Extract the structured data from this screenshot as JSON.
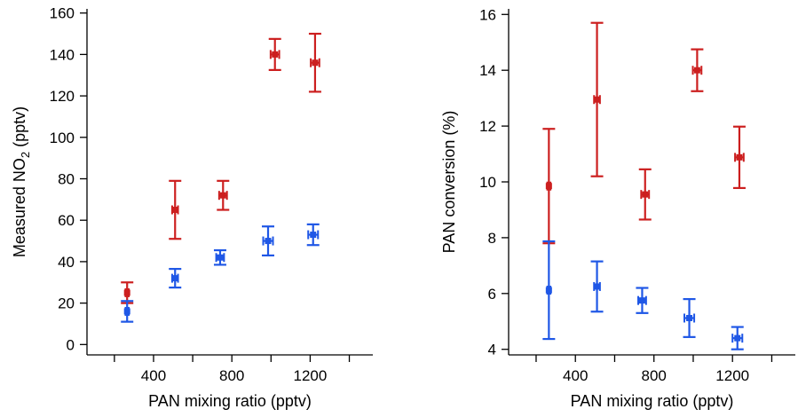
{
  "colors": {
    "red": "#cc1f1f",
    "blue": "#1f57e6",
    "axis": "#000000"
  },
  "chart_data": [
    {
      "type": "scatter",
      "error_bars": true,
      "title": "",
      "xlabel": "PAN mixing ratio (pptv)",
      "ylabel_main": "Measured NO",
      "ylabel_sub": "2",
      "ylabel_tail": " (pptv)",
      "xlim": [
        60,
        1520
      ],
      "ylim": [
        -5,
        162
      ],
      "x_ticks": [
        400,
        800,
        1200
      ],
      "x_minor_ticks": [
        200,
        600,
        1000,
        1400
      ],
      "y_ticks": [
        0,
        20,
        40,
        60,
        80,
        100,
        120,
        140,
        160
      ],
      "grid": false,
      "legend": "none",
      "series": [
        {
          "color": "red",
          "x": [
            265,
            510,
            755,
            1020,
            1225
          ],
          "y": [
            25,
            65,
            72,
            140,
            136
          ],
          "y_err": [
            5,
            14,
            7,
            7.5,
            14
          ],
          "x_err": [
            8,
            15,
            20,
            22,
            22
          ]
        },
        {
          "color": "blue",
          "x": [
            265,
            510,
            740,
            985,
            1215
          ],
          "y": [
            16,
            32,
            42,
            50,
            53
          ],
          "y_err": [
            5,
            4.5,
            3.5,
            7,
            5
          ],
          "x_err": [
            8,
            15,
            20,
            25,
            25
          ]
        }
      ]
    },
    {
      "type": "scatter",
      "error_bars": true,
      "title": "",
      "xlabel": "PAN mixing ratio (pptv)",
      "ylabel_main": "PAN conversion (%)",
      "ylabel_sub": "",
      "ylabel_tail": "",
      "xlim": [
        60,
        1520
      ],
      "ylim": [
        3.8,
        16.2
      ],
      "x_ticks": [
        400,
        800,
        1200
      ],
      "x_minor_ticks": [
        200,
        600,
        1000,
        1400
      ],
      "y_ticks": [
        4,
        6,
        8,
        10,
        12,
        14,
        16
      ],
      "grid": false,
      "legend": "none",
      "series": [
        {
          "color": "red",
          "x": [
            265,
            510,
            755,
            1020,
            1235
          ],
          "y": [
            9.85,
            12.95,
            9.55,
            14.0,
            10.88
          ],
          "y_err": [
            2.05,
            2.75,
            0.9,
            0.75,
            1.1
          ],
          "x_err": [
            8,
            15,
            20,
            22,
            22
          ]
        },
        {
          "color": "blue",
          "x": [
            265,
            510,
            740,
            980,
            1225
          ],
          "y": [
            6.12,
            6.25,
            5.75,
            5.12,
            4.4
          ],
          "y_err": [
            1.75,
            0.9,
            0.45,
            0.68,
            0.4
          ],
          "x_err": [
            8,
            15,
            20,
            25,
            25
          ]
        }
      ]
    }
  ]
}
